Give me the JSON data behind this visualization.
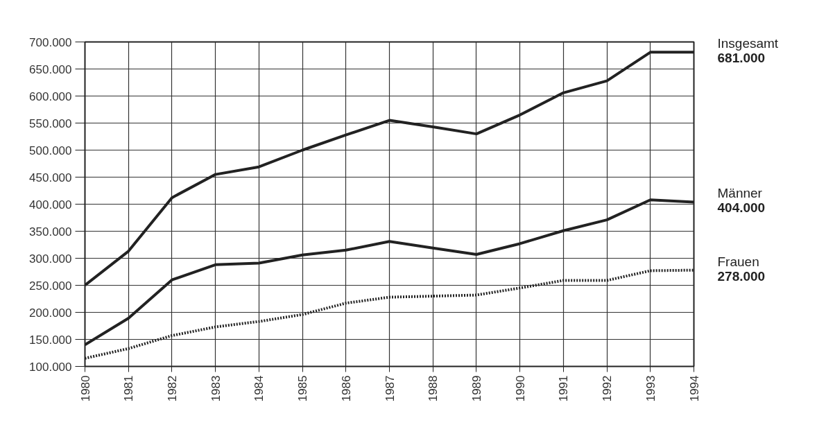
{
  "chart_data": {
    "type": "line",
    "x": [
      1980,
      1981,
      1982,
      1983,
      1984,
      1985,
      1986,
      1987,
      1988,
      1989,
      1990,
      1991,
      1992,
      1993,
      1994
    ],
    "series": [
      {
        "name": "Insgesamt",
        "color": "#222222",
        "line_style": "solid",
        "values": [
          250000,
          313000,
          412000,
          455000,
          469000,
          500000,
          528000,
          555000,
          543000,
          530000,
          565000,
          606000,
          628000,
          681000,
          681000
        ],
        "value_labels": [
          null,
          null,
          null,
          null,
          null,
          null,
          null,
          null,
          null,
          null,
          null,
          null,
          null,
          null,
          "681.000"
        ]
      },
      {
        "name": "Männer",
        "color": "#222222",
        "line_style": "solid",
        "values": [
          140000,
          189000,
          260000,
          288000,
          291000,
          306000,
          315000,
          331000,
          319000,
          307000,
          327000,
          351000,
          371000,
          408000,
          404000
        ],
        "value_labels": [
          null,
          null,
          null,
          null,
          null,
          null,
          null,
          null,
          null,
          null,
          null,
          null,
          null,
          null,
          "404.000"
        ]
      },
      {
        "name": "Frauen",
        "color": "#222222",
        "line_style": "dotted",
        "values": [
          115000,
          133000,
          157000,
          173000,
          183000,
          196000,
          217000,
          228000,
          230000,
          232000,
          245000,
          259000,
          259000,
          277000,
          278000
        ],
        "value_labels": [
          null,
          null,
          null,
          null,
          null,
          null,
          null,
          null,
          null,
          null,
          null,
          null,
          null,
          null,
          "278.000"
        ]
      }
    ],
    "xlim": [
      1980,
      1994
    ],
    "xticks": [
      1980,
      1981,
      1982,
      1983,
      1984,
      1985,
      1986,
      1987,
      1988,
      1989,
      1990,
      1991,
      1992,
      1993,
      1994
    ],
    "ylim": [
      100000,
      700000
    ],
    "yticks": [
      {
        "value": 100000,
        "label": "100.000"
      },
      {
        "value": 150000,
        "label": "150.000"
      },
      {
        "value": 200000,
        "label": "200.000"
      },
      {
        "value": 250000,
        "label": "250.000"
      },
      {
        "value": 300000,
        "label": "300.000"
      },
      {
        "value": 350000,
        "label": "350.000"
      },
      {
        "value": 400000,
        "label": "400.000"
      },
      {
        "value": 450000,
        "label": "450.000"
      },
      {
        "value": 500000,
        "label": "500.000"
      },
      {
        "value": 550000,
        "label": "550.000"
      },
      {
        "value": 600000,
        "label": "600.000"
      },
      {
        "value": 650000,
        "label": "650.000"
      },
      {
        "value": 700000,
        "label": "700.000"
      }
    ],
    "grid": true,
    "legend": false,
    "marker": "none"
  }
}
